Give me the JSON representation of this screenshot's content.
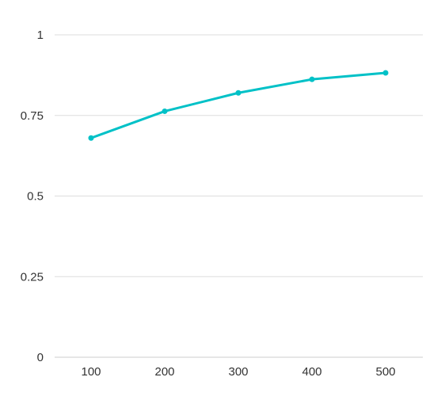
{
  "colors": {
    "series": "#00c1c7",
    "grid": "#dddddd",
    "text": "#333333",
    "background": "#ffffff"
  },
  "chart_data": {
    "type": "line",
    "title": "",
    "xlabel": "",
    "ylabel": "",
    "x": [
      100,
      200,
      300,
      400,
      500
    ],
    "x_tick_labels": [
      "100",
      "200",
      "300",
      "400",
      "500"
    ],
    "y_tick_values": [
      0,
      0.25,
      0.5,
      0.75,
      1
    ],
    "y_tick_labels": [
      "0",
      "0.25",
      "0.5",
      "0.75",
      "1"
    ],
    "ylim": [
      0,
      1
    ],
    "grid": "horizontal",
    "legend": "none",
    "series": [
      {
        "values": [
          0.68,
          0.763,
          0.82,
          0.862,
          0.882
        ],
        "color": "#00c1c7"
      }
    ]
  }
}
